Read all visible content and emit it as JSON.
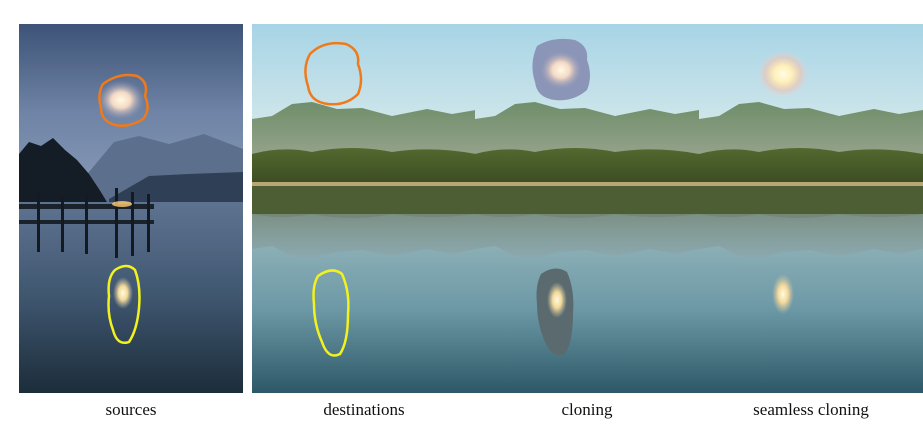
{
  "figure": {
    "panels": [
      {
        "caption": "sources"
      },
      {
        "caption": "destinations"
      },
      {
        "caption": "cloning"
      },
      {
        "caption": "seamless cloning"
      }
    ],
    "colors": {
      "sun_outline": "#f07a1a",
      "reflection_outline": "#f2f21e",
      "sky_top": "#a9d6e8",
      "water": "#2e5a68",
      "night_sky": "#55698e",
      "night_water": "#243848"
    }
  }
}
